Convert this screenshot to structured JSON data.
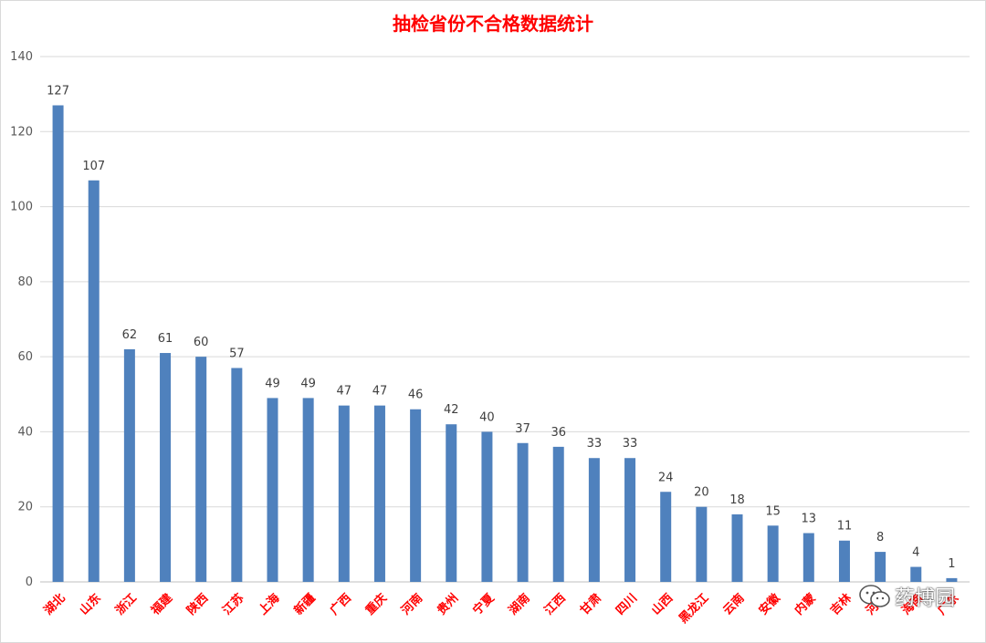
{
  "chart_data": {
    "type": "bar",
    "title": "抽检省份不合格数据统计",
    "categories": [
      "湖北",
      "山东",
      "浙江",
      "福建",
      "陕西",
      "江苏",
      "上海",
      "新疆",
      "广西",
      "重庆",
      "河南",
      "贵州",
      "宁夏",
      "湖南",
      "江西",
      "甘肃",
      "四川",
      "山西",
      "黑龙江",
      "云南",
      "安徽",
      "内蒙",
      "吉林",
      "河北",
      "海南",
      "广东"
    ],
    "values": [
      127,
      107,
      62,
      61,
      60,
      57,
      49,
      49,
      47,
      47,
      46,
      42,
      40,
      37,
      36,
      33,
      33,
      24,
      20,
      18,
      15,
      13,
      11,
      8,
      4,
      1
    ],
    "ylim": [
      0,
      140
    ],
    "yticks": [
      0,
      20,
      40,
      60,
      80,
      100,
      120,
      140
    ],
    "grid": true,
    "legend": "none",
    "xlabel": "",
    "ylabel": "",
    "colors": {
      "bar": "#4f81bd",
      "title": "#ff0000",
      "category_label": "#ff0000",
      "grid": "#d9d9d9",
      "axis": "#bfbfbf"
    }
  },
  "watermark": {
    "text": "药博园",
    "icon": "wechat-icon"
  }
}
